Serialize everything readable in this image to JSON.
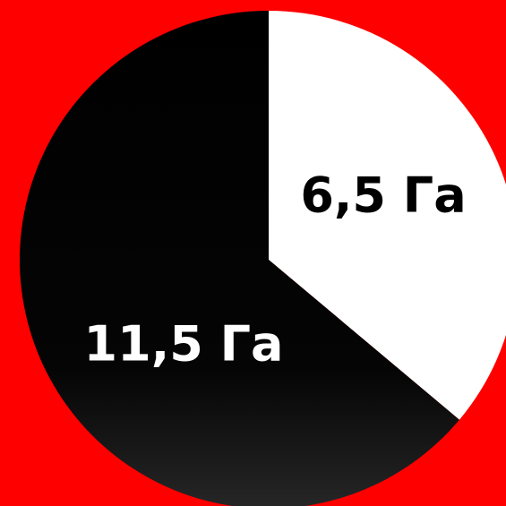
{
  "chart_data": {
    "type": "pie",
    "categories": [
      "6,5 Га",
      "11,5 Га"
    ],
    "values": [
      6.5,
      11.5
    ],
    "unit": "Га",
    "colors": {
      "background": "#ff0000",
      "slice_light": "#ffffff",
      "slice_dark": "#000000",
      "label_on_light": "#000000",
      "label_on_dark": "#ffffff"
    }
  }
}
